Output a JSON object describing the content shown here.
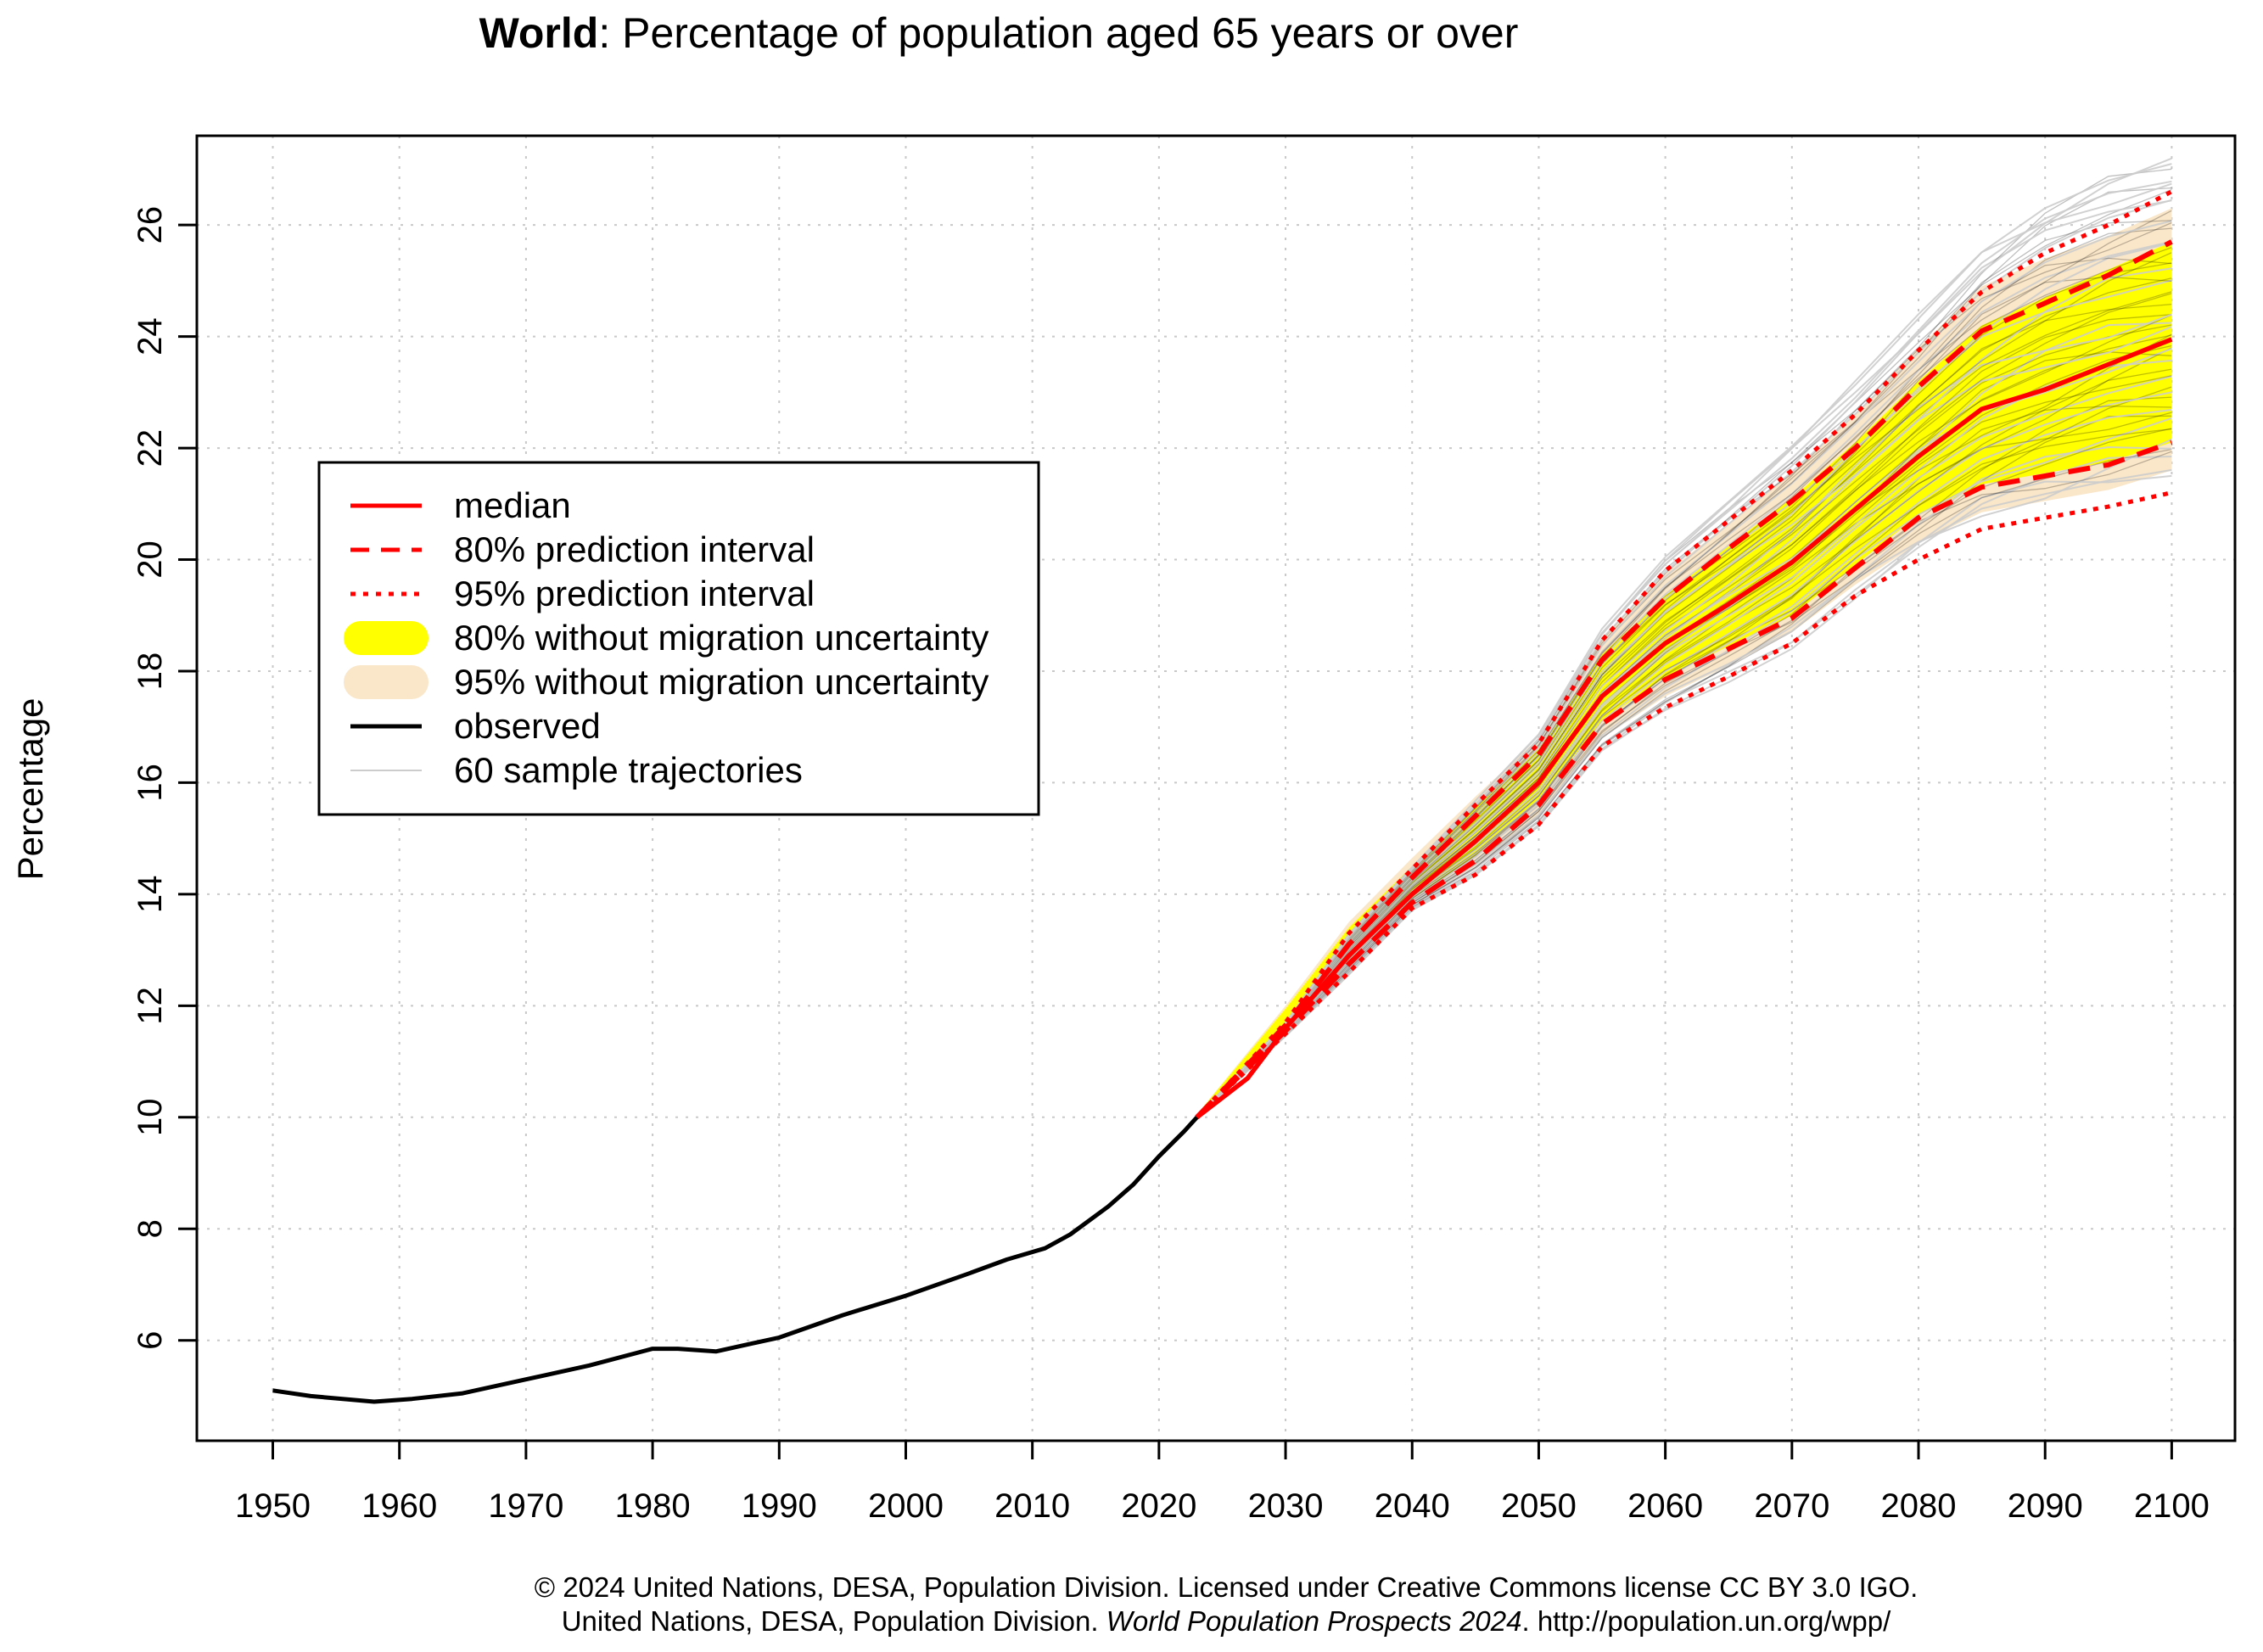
{
  "chart_data": {
    "type": "line",
    "title_bold": "World",
    "title_rest": ": Percentage of population aged 65 years or over",
    "xlabel": "",
    "ylabel": "Percentage",
    "xlim": [
      1944,
      2105
    ],
    "ylim": [
      4.2,
      27.6
    ],
    "x_ticks": [
      1950,
      1960,
      1970,
      1980,
      1990,
      2000,
      2010,
      2020,
      2030,
      2040,
      2050,
      2060,
      2070,
      2080,
      2090,
      2100
    ],
    "y_ticks": [
      6,
      8,
      10,
      12,
      14,
      16,
      18,
      20,
      22,
      24,
      26
    ],
    "grid": true,
    "legend_position": "upper-left",
    "legend": [
      {
        "key": "median",
        "label": "median",
        "style": "solid",
        "color": "#ff0000"
      },
      {
        "key": "pi80",
        "label": "80% prediction interval",
        "style": "dashed",
        "color": "#ff0000"
      },
      {
        "key": "pi95",
        "label": "95% prediction interval",
        "style": "dotted",
        "color": "#ff0000"
      },
      {
        "key": "nomig80",
        "label": "80% without migration uncertainty",
        "style": "band",
        "color": "#ffff00"
      },
      {
        "key": "nomig95",
        "label": "95% without migration uncertainty",
        "style": "band",
        "color": "#fae6c8"
      },
      {
        "key": "observed",
        "label": "observed",
        "style": "solid",
        "color": "#000000"
      },
      {
        "key": "samples",
        "label": "60 sample trajectories",
        "style": "thin",
        "color": "#cccccc"
      }
    ],
    "series": [
      {
        "name": "observed",
        "x": [
          1950,
          1953,
          1958,
          1961,
          1965,
          1970,
          1975,
          1980,
          1982,
          1985,
          1990,
          1995,
          2000,
          2005,
          2008,
          2011,
          2013,
          2016,
          2018,
          2020,
          2022,
          2023
        ],
        "y": [
          5.1,
          5.0,
          4.9,
          4.95,
          5.05,
          5.3,
          5.55,
          5.85,
          5.85,
          5.8,
          6.05,
          6.45,
          6.8,
          7.2,
          7.45,
          7.65,
          7.9,
          8.4,
          8.8,
          9.3,
          9.75,
          10.0
        ]
      },
      {
        "name": "median",
        "x": [
          2023,
          2025,
          2027,
          2030,
          2035,
          2040,
          2045,
          2050,
          2055,
          2060,
          2065,
          2070,
          2075,
          2080,
          2085,
          2090,
          2095,
          2100
        ],
        "y": [
          10.0,
          10.35,
          10.7,
          11.6,
          12.9,
          14.0,
          14.95,
          16.0,
          17.55,
          18.5,
          19.2,
          19.95,
          20.9,
          21.85,
          22.7,
          23.05,
          23.5,
          23.95
        ]
      },
      {
        "name": "pi80_upper",
        "x": [
          2023,
          2030,
          2035,
          2040,
          2045,
          2050,
          2055,
          2060,
          2065,
          2070,
          2075,
          2080,
          2085,
          2090,
          2095,
          2100
        ],
        "y": [
          10.0,
          11.65,
          13.1,
          14.3,
          15.4,
          16.5,
          18.2,
          19.3,
          20.2,
          21.05,
          22.0,
          23.1,
          24.1,
          24.6,
          25.1,
          25.7
        ]
      },
      {
        "name": "pi80_lower",
        "x": [
          2023,
          2030,
          2035,
          2040,
          2045,
          2050,
          2055,
          2060,
          2065,
          2070,
          2075,
          2080,
          2085,
          2090,
          2095,
          2100
        ],
        "y": [
          10.0,
          11.55,
          12.75,
          13.85,
          14.6,
          15.6,
          17.05,
          17.85,
          18.4,
          18.95,
          19.85,
          20.75,
          21.3,
          21.5,
          21.7,
          22.1
        ]
      },
      {
        "name": "pi95_upper",
        "x": [
          2023,
          2030,
          2035,
          2040,
          2045,
          2050,
          2055,
          2060,
          2065,
          2070,
          2075,
          2080,
          2085,
          2090,
          2095,
          2100
        ],
        "y": [
          10.0,
          11.7,
          13.3,
          14.45,
          15.6,
          16.7,
          18.55,
          19.8,
          20.7,
          21.6,
          22.6,
          23.75,
          24.8,
          25.5,
          26.0,
          26.6
        ]
      },
      {
        "name": "pi95_lower",
        "x": [
          2023,
          2030,
          2035,
          2040,
          2045,
          2050,
          2055,
          2060,
          2065,
          2070,
          2075,
          2080,
          2085,
          2090,
          2095,
          2100
        ],
        "y": [
          10.0,
          11.5,
          12.6,
          13.75,
          14.35,
          15.25,
          16.65,
          17.35,
          17.9,
          18.5,
          19.35,
          20.0,
          20.55,
          20.75,
          20.95,
          21.2
        ]
      },
      {
        "name": "nomig80_upper",
        "x": [
          2023,
          2030,
          2035,
          2040,
          2045,
          2050,
          2055,
          2060,
          2065,
          2070,
          2075,
          2080,
          2085,
          2090,
          2095,
          2100
        ],
        "y": [
          10.05,
          11.95,
          13.4,
          14.5,
          15.55,
          16.6,
          18.3,
          19.35,
          20.25,
          21.1,
          22.1,
          23.2,
          24.2,
          24.7,
          25.2,
          25.7
        ]
      },
      {
        "name": "nomig80_lower",
        "x": [
          2023,
          2030,
          2035,
          2040,
          2045,
          2050,
          2055,
          2060,
          2065,
          2070,
          2075,
          2080,
          2085,
          2090,
          2095,
          2100
        ],
        "y": [
          10.0,
          11.5,
          12.8,
          13.9,
          14.7,
          15.7,
          17.1,
          17.9,
          18.45,
          19.0,
          19.9,
          20.8,
          21.35,
          21.55,
          21.75,
          22.1
        ]
      },
      {
        "name": "nomig95_upper",
        "x": [
          2023,
          2030,
          2035,
          2040,
          2045,
          2050,
          2055,
          2060,
          2065,
          2070,
          2075,
          2080,
          2085,
          2090,
          2095,
          2100
        ],
        "y": [
          10.05,
          12.0,
          13.5,
          14.65,
          15.75,
          16.8,
          18.6,
          19.75,
          20.65,
          21.55,
          22.6,
          23.8,
          24.9,
          25.4,
          25.8,
          26.3
        ]
      },
      {
        "name": "nomig95_lower",
        "x": [
          2023,
          2030,
          2035,
          2040,
          2045,
          2050,
          2055,
          2060,
          2065,
          2070,
          2075,
          2080,
          2085,
          2090,
          2095,
          2100
        ],
        "y": [
          10.0,
          11.45,
          12.7,
          13.8,
          14.5,
          15.4,
          16.8,
          17.55,
          18.1,
          18.7,
          19.55,
          20.3,
          20.85,
          21.05,
          21.25,
          21.6
        ]
      },
      {
        "name": "sample_max",
        "x": [
          2023,
          2030,
          2035,
          2040,
          2045,
          2050,
          2055,
          2060,
          2065,
          2070,
          2075,
          2080,
          2085,
          2090,
          2095,
          2100
        ],
        "y": [
          10.0,
          11.7,
          13.3,
          14.5,
          15.7,
          16.9,
          18.8,
          20.1,
          21.1,
          22.1,
          23.2,
          24.4,
          25.6,
          26.4,
          26.9,
          27.2
        ]
      },
      {
        "name": "sample_min",
        "x": [
          2023,
          2030,
          2035,
          2040,
          2045,
          2050,
          2055,
          2060,
          2065,
          2070,
          2075,
          2080,
          2085,
          2090,
          2095,
          2100
        ],
        "y": [
          10.0,
          11.45,
          12.55,
          13.7,
          14.3,
          15.15,
          16.5,
          17.25,
          17.8,
          18.4,
          19.3,
          20.1,
          20.7,
          21.0,
          21.3,
          21.5
        ]
      }
    ]
  },
  "credit": {
    "line1": "© 2024 United Nations, DESA, Population Division. Licensed under Creative Commons license CC BY 3.0 IGO.",
    "line2_plain": "United Nations, DESA, Population Division. ",
    "line2_italic": "World Population Prospects 2024",
    "line2_tail": ". http://population.un.org/wpp/"
  }
}
